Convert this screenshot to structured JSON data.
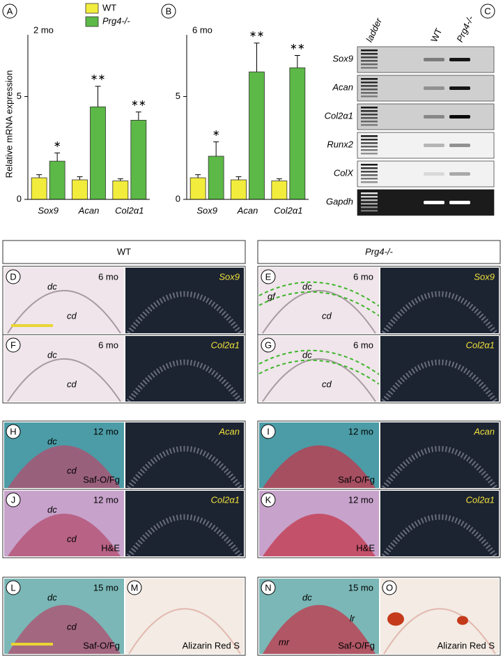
{
  "chart_data": [
    {
      "type": "bar",
      "panel": "A",
      "subtitle": "2 mo",
      "ylabel": "Relative mRNA expression",
      "categories": [
        "Sox9",
        "Acan",
        "Col2α1"
      ],
      "ylim": [
        0,
        8
      ],
      "yticks": [
        0,
        5
      ],
      "legend": true,
      "series": [
        {
          "name": "WT",
          "color": "#f2ec3c",
          "values": [
            1.05,
            0.95,
            0.9
          ],
          "errors": [
            0.15,
            0.15,
            0.1
          ]
        },
        {
          "name": "Prg4-/-",
          "color": "#5cb847",
          "values": [
            1.86,
            4.5,
            3.85
          ],
          "errors": [
            0.4,
            1.0,
            0.4
          ],
          "annotations": [
            "∗",
            "∗∗",
            "∗∗"
          ]
        }
      ]
    },
    {
      "type": "bar",
      "panel": "B",
      "subtitle": "6 mo",
      "categories": [
        "Sox9",
        "Acan",
        "Col2α1"
      ],
      "ylim": [
        0,
        8
      ],
      "yticks": [
        0,
        5
      ],
      "legend": false,
      "series": [
        {
          "color": "#f2ec3c",
          "values": [
            1.05,
            0.95,
            0.9
          ],
          "errors": [
            0.15,
            0.15,
            0.1
          ]
        },
        {
          "color": "#5cb847",
          "values": [
            2.1,
            6.2,
            6.4
          ],
          "errors": [
            0.7,
            1.4,
            0.6
          ],
          "annotations": [
            "∗",
            "∗∗",
            "∗∗"
          ]
        }
      ]
    }
  ],
  "gel": {
    "panel": "C",
    "lanes": [
      "ladder",
      "WT",
      "Prg4-/-"
    ],
    "genes": [
      "Sox9",
      "Acan",
      "Col2α1",
      "Runx2",
      "ColX",
      "Gapdh"
    ]
  },
  "micrographs": {
    "headers": [
      "WT",
      "Prg4-/-"
    ],
    "rows": [
      [
        {
          "left": {
            "letter": "D",
            "age": "6 mo",
            "marks": [
              "dc",
              "cd"
            ]
          },
          "right": {
            "probe": "Sox9"
          }
        },
        {
          "left": {
            "letter": "E",
            "age": "6 mo",
            "marks": [
              "gf",
              "dc",
              "cd"
            ]
          },
          "right": {
            "probe": "Sox9"
          }
        }
      ],
      [
        {
          "left": {
            "letter": "F",
            "age": "6 mo",
            "marks": [
              "dc",
              "cd"
            ]
          },
          "right": {
            "probe": "Col2α1"
          }
        },
        {
          "left": {
            "letter": "G",
            "age": "6 mo",
            "marks": [
              "dc",
              "cd"
            ]
          },
          "right": {
            "probe": "Col2α1"
          }
        }
      ],
      [
        {
          "left": {
            "letter": "H",
            "age": "12 mo",
            "marks": [
              "dc",
              "cd"
            ],
            "stain": "Saf-O/Fg"
          },
          "right": {
            "probe": "Acan"
          }
        },
        {
          "left": {
            "letter": "I",
            "age": "12 mo",
            "stain": "Saf-O/Fg"
          },
          "right": {
            "probe": "Acan"
          }
        }
      ],
      [
        {
          "left": {
            "letter": "J",
            "age": "12 mo",
            "marks": [
              "dc",
              "cd"
            ],
            "stain": "H&E"
          },
          "right": {
            "probe": "Col2α1"
          }
        },
        {
          "left": {
            "letter": "K",
            "age": "12 mo",
            "stain": "H&E"
          },
          "right": {
            "probe": "Col2α1"
          }
        }
      ],
      [
        {
          "left": {
            "letter": "L",
            "age": "15 mo",
            "marks": [
              "dc",
              "cd"
            ],
            "stain": "Saf-O/Fg"
          },
          "right": {
            "letter": "M",
            "stain": "Alizarin Red S"
          }
        },
        {
          "left": {
            "letter": "N",
            "age": "15 mo",
            "marks": [
              "dc",
              "mr",
              "lr"
            ],
            "stain": "Saf-O/Fg"
          },
          "right": {
            "letter": "O",
            "stain": "Alizarin Red S"
          }
        }
      ]
    ]
  }
}
